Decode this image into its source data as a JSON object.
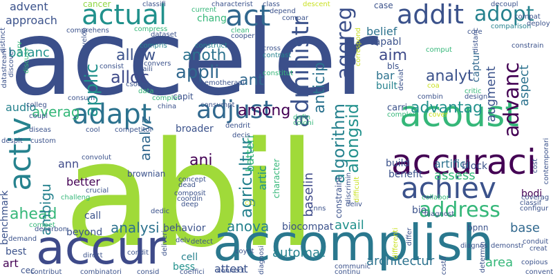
{
  "palette": {
    "purple": "#481f70",
    "indigo": "#3b4f8a",
    "blue": "#31688e",
    "teal": "#26828e",
    "sea": "#21918c",
    "green": "#35b779",
    "lime": "#90d743",
    "yellow": "#c8e020"
  },
  "words": {
    "acceler": "acceler",
    "abil": "abil",
    "accompl": "accomplish",
    "accur": "accur",
    "accuraci": "accuraci",
    "acoust": "acoust",
    "achiev": "achiev",
    "actual": "actual",
    "act": "act",
    "addit": "addit",
    "adopt": "adopt",
    "activ": "activ",
    "adapt": "adapt",
    "adjust": "adjust",
    "address": "address",
    "administr": "administr",
    "aggreg": "aggreg",
    "algorithm": "algorithm",
    "alongsid": "alongsid",
    "advanc": "advanc",
    "advantag": "advantag",
    "appli": "appli",
    "applic": "applic",
    "alloc": "alloc",
    "allow": "allow",
    "anoth": "anoth",
    "analyt": "analyt",
    "ahead": "ahead",
    "analysi": "analysi",
    "anova": "anova",
    "agricultur": "agricultur",
    "among": "among",
    "ani": "ani",
    "ant": "ant",
    "aim": "aim",
    "anticip": "anticip",
    "averag": "averag",
    "balanc": "balanc",
    "approach": "approach",
    "advent": "advent",
    "audio": "audio",
    "ambigu": "ambigu",
    "assess": "assess",
    "artifici": "artifici",
    "analyz": "analyz",
    "architectur": "architectur",
    "automat": "automat",
    "avail": "avail",
    "attent": "attent",
    "area": "area",
    "art": "art",
    "best": "best",
    "bess": "bess",
    "cell": "cell",
    "ann": "ann",
    "benefit": "benefit",
    "base": "base",
    "baselin": "baselin",
    "bar": "bar",
    "bls": "bls",
    "belief": "belief",
    "built": "built",
    "augment": "augment",
    "aspect": "aspect",
    "captur": "captur",
    "capabl": "capabl",
    "artic": "artic",
    "batteri": "batteri",
    "better": "better",
    "beyond": "beyond",
    "behavior": "behavior",
    "biocompat": "biocompat",
    "benchmark": "benchmark",
    "block": "block",
    "build": "build",
    "bodi": "bodi",
    "bio": "bio",
    "carri": "carri",
    "call": "call",
    "cancer": "cancer",
    "chang": "chang",
    "classifi": "classifi",
    "current": "current",
    "characterist": "characterist",
    "class": "class",
    "descent": "descent",
    "case": "case",
    "decoupl": "decoupl",
    "compat": "compat",
    "depend": "depend",
    "compar": "compar",
    "comparison": "comparison",
    "deploy": "deploy",
    "core": "core",
    "compress": "compress",
    "comprehens": "comprehens",
    "dataset": "dataset",
    "clean": "clean",
    "cooper": "cooper",
    "construct": "construct",
    "compris": "compris",
    "cross": "cross",
    "contrast": "contrast",
    "constitut": "constitut",
    "consist": "consist",
    "convers": "convers",
    "daili": "daili",
    "csodea": "csodea",
    "chemotherapi": "chemotherapi",
    "distanc": "distanc",
    "constrain": "constrain",
    "comput": "comput",
    "coa": "coa",
    "critic": "critic",
    "design": "design",
    "combin": "combin",
    "data": "data",
    "complet": "complet",
    "consumpt": "consumpt",
    "capit": "capit",
    "colleg": "colleg",
    "consum": "consum",
    "china": "china",
    "complex": "complex",
    "cover": "cover",
    "cost": "cost",
    "contemporari": "contemporari",
    "defin": "defin",
    "coloni": "coloni",
    "cool": "cool",
    "competitor": "competitor",
    "broader": "broader",
    "decis": "decis",
    "dendrit": "dendrit",
    "diseas": "diseas",
    "custom": "custom",
    "despit": "despit",
    "coupl": "coupl",
    "convolut": "convolut",
    "concept": "concept",
    "dead": "dead",
    "crucial": "crucial",
    "challeng": "challeng",
    "brownian": "brownian",
    "composit": "composit",
    "coordin": "coordin",
    "deep": "deep",
    "citi": "citi",
    "dedic": "dedic",
    "cnns": "cnns",
    "deliv": "deliv",
    "collabor": "collabor",
    "diagnost": "diagnost",
    "differ": "differ",
    "diagnos": "diagnos",
    "bpnn": "bpnn",
    "demonstr": "demonstr",
    "conduit": "conduit",
    "creat": "creat",
    "copious": "copious",
    "convent": "convent",
    "coverag": "coverag",
    "classif": "classif",
    "configur": "configur",
    "compet": "compet",
    "decarbon": "decarbon",
    "demand": "demand",
    "direct": "direct",
    "condit": "condit",
    "delv": "delv",
    "detect": "detect",
    "coyot": "coyot",
    "connect": "connect",
    "communic": "communic",
    "continu": "continu",
    "contribut": "contribut",
    "combinatori": "combinatori",
    "consid": "consid",
    "coeffici": "coeffici",
    "cec": "cec",
    "discover": "discover",
    "datastream": "datastream",
    "curv": "curv",
    "discuss": "discuss",
    "develop": "develop",
    "correspond": "correspond",
    "deviat": "deviat",
    "determin": "determin",
    "constraint": "constraint",
    "discrimin": "discrimin",
    "difficult": "difficult",
    "distinct": "distinct",
    "deliveri": "deliveri",
    "diagnosi": "diagnosi",
    "differenti": "differenti",
    "costli": "costli",
    "cell2": "cell",
    "character": "character"
  }
}
